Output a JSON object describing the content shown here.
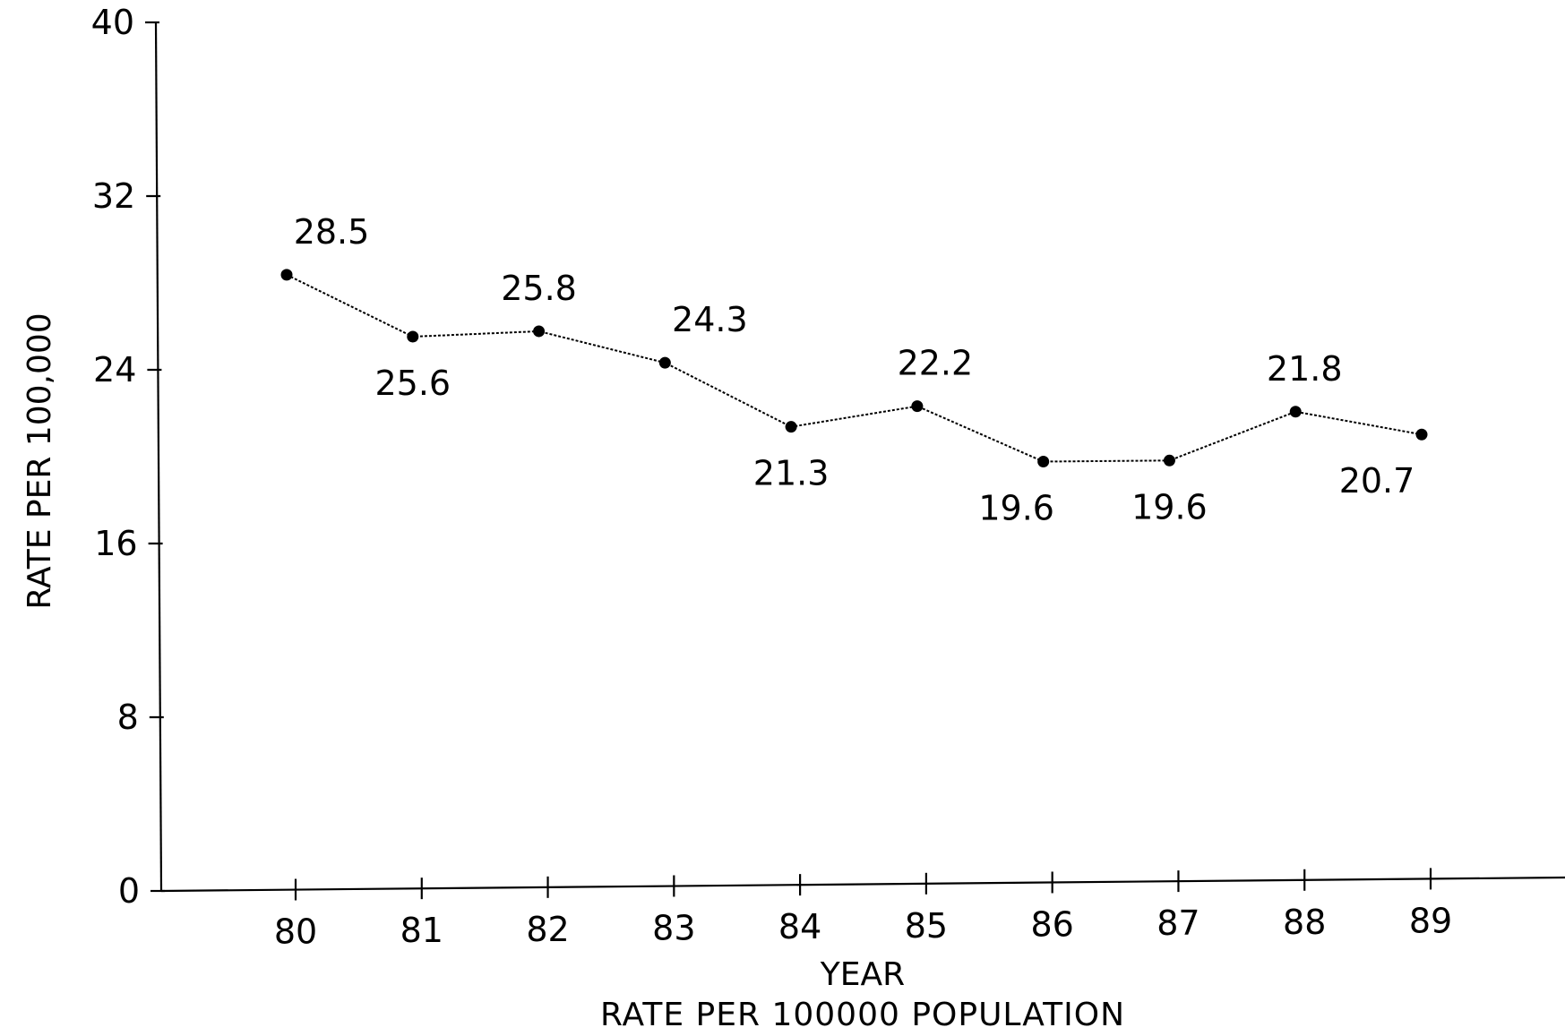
{
  "chart_data": {
    "type": "line",
    "title": "",
    "caption": "RATE PER 100000 POPULATION",
    "xlabel": "YEAR",
    "ylabel": "RATE PER 100,000",
    "categories": [
      "80",
      "81",
      "82",
      "83",
      "84",
      "85",
      "86",
      "87",
      "88",
      "89"
    ],
    "series": [
      {
        "values": [
          28.5,
          25.6,
          25.8,
          24.3,
          21.3,
          22.2,
          19.6,
          19.6,
          21.8,
          20.7
        ]
      }
    ],
    "data_labels": [
      "28.5",
      "25.6",
      "25.8",
      "24.3",
      "21.3",
      "22.2",
      "19.6",
      "19.6",
      "21.8",
      "20.7"
    ],
    "yticks": [
      0,
      8,
      16,
      24,
      32,
      40
    ],
    "ytick_labels": [
      "0",
      "8",
      "16",
      "24",
      "32",
      "40"
    ],
    "ylim": [
      0,
      40
    ],
    "grid": false,
    "legend": "none",
    "line_color": "#000000"
  }
}
